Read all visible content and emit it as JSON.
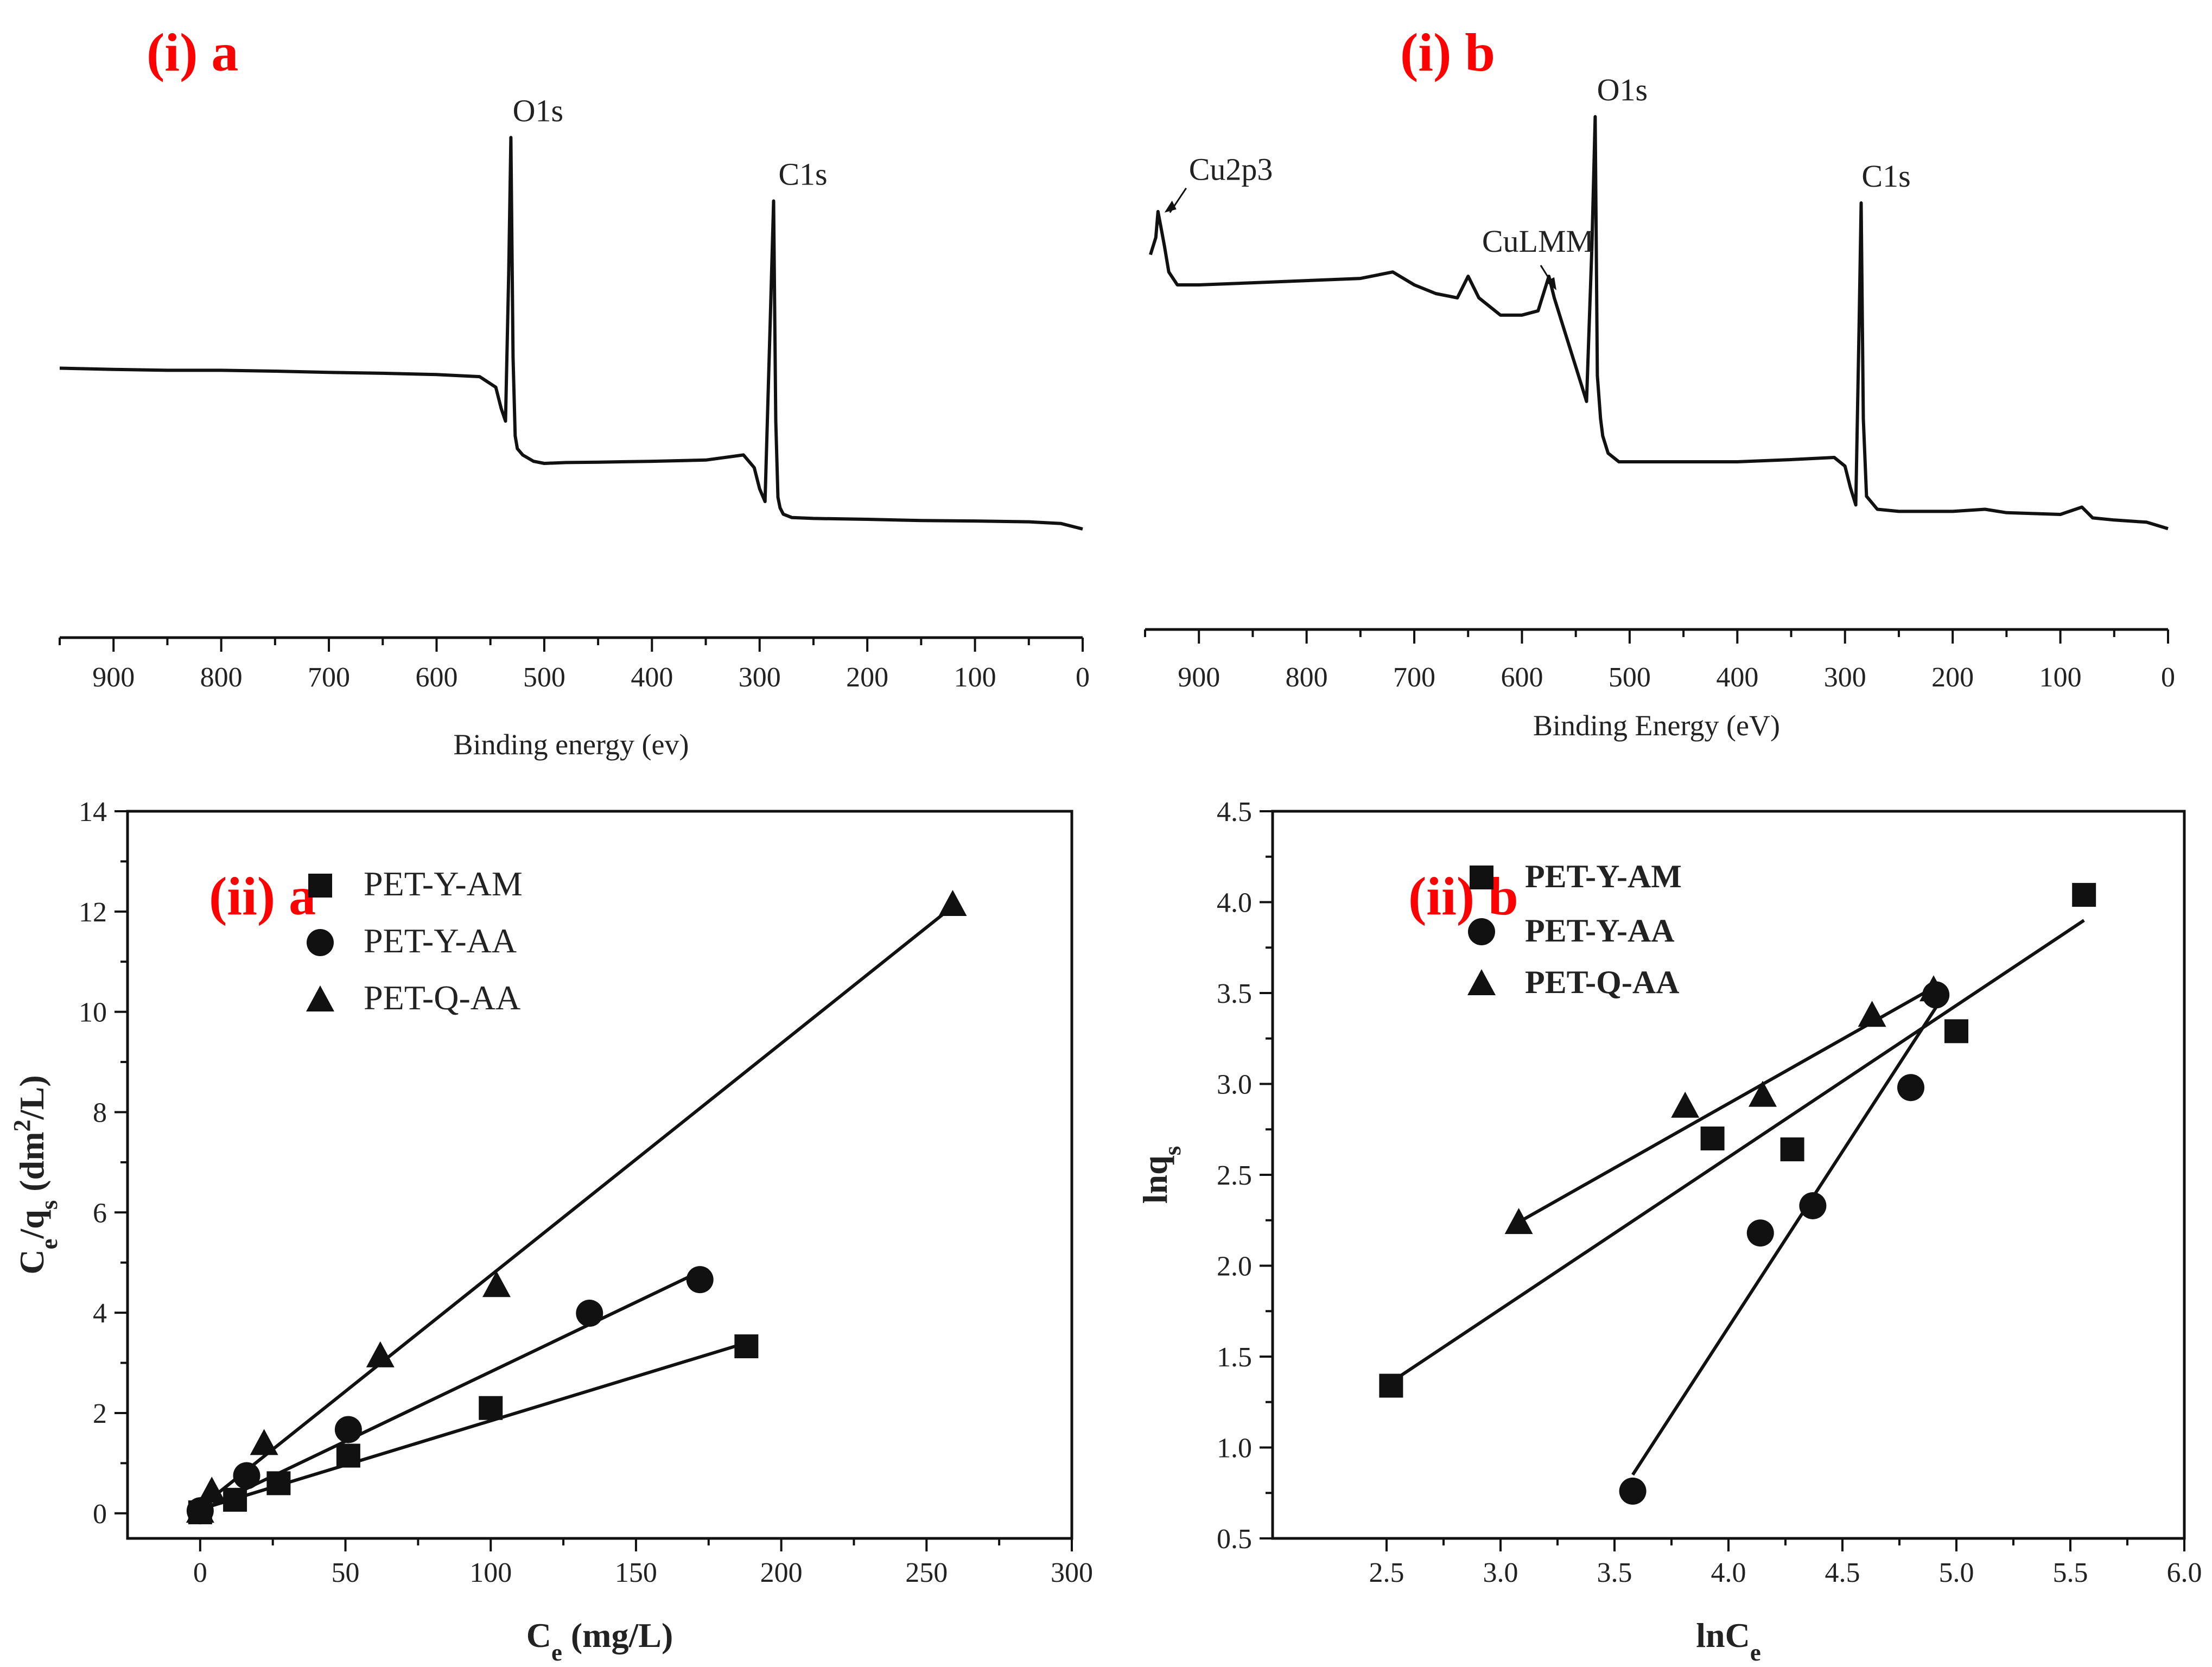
{
  "chart_data": [
    {
      "id": "ia",
      "type": "line",
      "panel_label": "(i) a",
      "xlabel": "Binding energy (ev)",
      "xlim": [
        950,
        0
      ],
      "x_reversed": true,
      "x_ticks": [
        "900",
        "800",
        "700",
        "600",
        "500",
        "400",
        "300",
        "200",
        "100",
        "0"
      ],
      "y_axis_shown": false,
      "y_relative_range": [
        0,
        100
      ],
      "series": [
        {
          "name": "XPS survey",
          "x": [
            950,
            900,
            850,
            800,
            750,
            700,
            650,
            600,
            560,
            545,
            540,
            536,
            533,
            531,
            529,
            527,
            525,
            520,
            510,
            500,
            480,
            450,
            400,
            350,
            315,
            305,
            300,
            295,
            290,
            287,
            285,
            283,
            281,
            278,
            270,
            250,
            200,
            150,
            100,
            50,
            20,
            0
          ],
          "y": [
            42.5,
            42.2,
            42.0,
            42.0,
            41.8,
            41.5,
            41.3,
            41.0,
            40.5,
            38.0,
            33.0,
            30.0,
            65.0,
            97.0,
            45.0,
            26.5,
            23.5,
            22.0,
            20.5,
            20.0,
            20.2,
            20.3,
            20.5,
            20.8,
            22.0,
            19.0,
            14.0,
            11.0,
            55.0,
            82.0,
            30.0,
            12.0,
            9.5,
            8.0,
            7.2,
            7.0,
            6.8,
            6.5,
            6.4,
            6.2,
            5.8,
            4.5
          ]
        }
      ],
      "annotations": [
        {
          "text": "O1s",
          "x": 531
        },
        {
          "text": "C1s",
          "x": 285
        }
      ]
    },
    {
      "id": "ib",
      "type": "line",
      "panel_label": "(i) b",
      "xlabel": "Binding Energy (eV)",
      "xlim": [
        950,
        0
      ],
      "x_reversed": true,
      "x_ticks": [
        "900",
        "800",
        "700",
        "600",
        "500",
        "400",
        "300",
        "200",
        "100",
        "0"
      ],
      "y_axis_shown": false,
      "y_relative_range": [
        0,
        100
      ],
      "series": [
        {
          "name": "XPS survey",
          "x": [
            945,
            940,
            938,
            935,
            932,
            928,
            920,
            900,
            850,
            800,
            750,
            720,
            700,
            680,
            660,
            650,
            640,
            620,
            600,
            585,
            575,
            570,
            560,
            550,
            545,
            540,
            535,
            532,
            530,
            527,
            525,
            520,
            510,
            500,
            450,
            400,
            350,
            310,
            300,
            295,
            290,
            287,
            285,
            283,
            280,
            270,
            250,
            200,
            170,
            150,
            100,
            80,
            70,
            50,
            20,
            0
          ],
          "y": [
            68.0,
            72.0,
            78.0,
            74.0,
            70.0,
            64.0,
            61.0,
            61.0,
            61.5,
            62.0,
            62.5,
            64.0,
            61.0,
            59.0,
            58.0,
            63.0,
            58.0,
            54.0,
            54.0,
            55.0,
            63.0,
            58.0,
            50.0,
            42.0,
            38.0,
            34.0,
            70.0,
            100.0,
            40.0,
            30.0,
            26.0,
            22.0,
            20.0,
            20.0,
            20.0,
            20.0,
            20.5,
            21.0,
            19.0,
            14.0,
            10.0,
            50.0,
            80.0,
            30.0,
            12.0,
            9.0,
            8.5,
            8.5,
            9.0,
            8.2,
            7.8,
            9.5,
            7.0,
            6.5,
            6.0,
            4.5
          ]
        }
      ],
      "annotations": [
        {
          "text": "Cu2p3",
          "x": 932
        },
        {
          "text": "CuLMM",
          "x": 570
        },
        {
          "text": "O1s",
          "x": 532
        },
        {
          "text": "C1s",
          "x": 287
        }
      ]
    },
    {
      "id": "iia",
      "type": "scatter",
      "panel_label": "(ii) a",
      "xlabel": "Ce (mg/L)",
      "ylabel": "Ce/qs (dm2/L)",
      "xlim": [
        -25,
        300
      ],
      "ylim": [
        -0.5,
        14
      ],
      "x_ticks": [
        "0",
        "50",
        "100",
        "150",
        "200",
        "250",
        "300"
      ],
      "y_ticks": [
        "0",
        "2",
        "4",
        "6",
        "8",
        "10",
        "12",
        "14"
      ],
      "series": [
        {
          "name": "PET-Y-AM",
          "marker": "square",
          "x": [
            0,
            12,
            27,
            51,
            100,
            188
          ],
          "y": [
            0.02,
            0.27,
            0.6,
            1.15,
            2.1,
            3.33
          ],
          "fit": [
            [
              0,
              0.08
            ],
            [
              188,
              3.4
            ]
          ]
        },
        {
          "name": "PET-Y-AA",
          "marker": "circle",
          "x": [
            0,
            16,
            51,
            134,
            172
          ],
          "y": [
            0.05,
            0.75,
            1.67,
            3.99,
            4.66
          ],
          "fit": [
            [
              0,
              0.05
            ],
            [
              172,
              4.82
            ]
          ]
        },
        {
          "name": "PET-Q-AA",
          "marker": "triangle",
          "x": [
            0,
            4,
            22,
            62,
            102,
            259
          ],
          "y": [
            0.05,
            0.45,
            1.4,
            3.15,
            4.55,
            12.15
          ],
          "fit": [
            [
              0,
              0.12
            ],
            [
              259,
              12.1
            ]
          ]
        }
      ]
    },
    {
      "id": "iib",
      "type": "scatter",
      "panel_label": "(ii) b",
      "xlabel": "lnCe",
      "ylabel": "lnqs",
      "xlim": [
        2.0,
        6.0
      ],
      "ylim": [
        0.5,
        4.5
      ],
      "x_ticks": [
        "2.5",
        "3.0",
        "3.5",
        "4.0",
        "4.5",
        "5.0",
        "5.5",
        "6.0"
      ],
      "y_ticks": [
        "0.5",
        "1.0",
        "1.5",
        "2.0",
        "2.5",
        "3.0",
        "3.5",
        "4.0",
        "4.5"
      ],
      "series": [
        {
          "name": "PET-Y-AM",
          "marker": "square",
          "x": [
            2.52,
            3.93,
            4.28,
            5.0,
            5.56
          ],
          "y": [
            1.34,
            2.7,
            2.64,
            3.29,
            4.04
          ],
          "fit": [
            [
              2.52,
              1.36
            ],
            [
              5.56,
              3.9
            ]
          ]
        },
        {
          "name": "PET-Y-AA",
          "marker": "circle",
          "x": [
            3.58,
            4.14,
            4.37,
            4.8,
            4.91
          ],
          "y": [
            0.76,
            2.18,
            2.33,
            2.98,
            3.49
          ],
          "fit": [
            [
              3.58,
              0.85
            ],
            [
              4.91,
              3.42
            ]
          ]
        },
        {
          "name": "PET-Q-AA",
          "marker": "triangle",
          "x": [
            3.08,
            3.81,
            4.15,
            4.63,
            4.9
          ],
          "y": [
            2.24,
            2.88,
            2.94,
            3.38,
            3.52
          ],
          "fit": [
            [
              3.08,
              2.24
            ],
            [
              4.9,
              3.53
            ]
          ]
        }
      ]
    }
  ]
}
